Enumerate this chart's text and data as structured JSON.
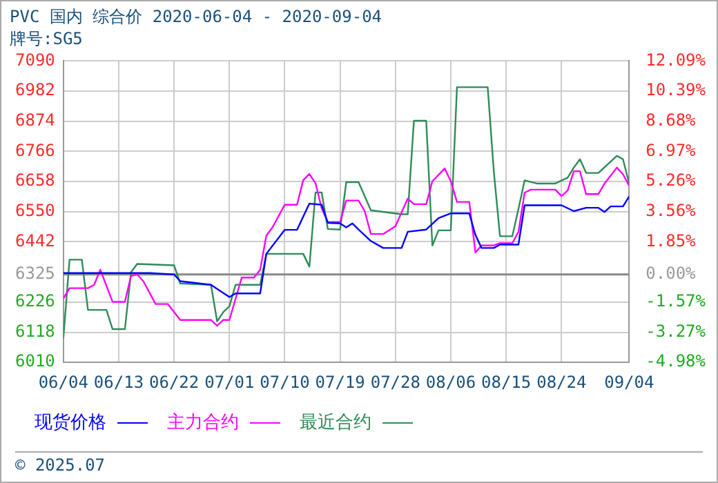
{
  "chart_data": {
    "type": "line",
    "title": "PVC 国内 综合价 2020-06-04 - 2020-09-04",
    "subtitle": "牌号:SG5",
    "annotations": [
      "© 2025.07"
    ],
    "xlim": [
      "2020-06-04",
      "2020-09-04"
    ],
    "xticks": [
      {
        "value": "2020-06-04",
        "label": "06/04"
      },
      {
        "value": "2020-06-13",
        "label": "06/13"
      },
      {
        "value": "2020-06-22",
        "label": "06/22"
      },
      {
        "value": "2020-07-01",
        "label": "07/01"
      },
      {
        "value": "2020-07-10",
        "label": "07/10"
      },
      {
        "value": "2020-07-19",
        "label": "07/19"
      },
      {
        "value": "2020-07-28",
        "label": "07/28"
      },
      {
        "value": "2020-08-06",
        "label": "08/06"
      },
      {
        "value": "2020-08-15",
        "label": "08/15"
      },
      {
        "value": "2020-08-24",
        "label": "08/24"
      },
      {
        "value": "2020-09-04",
        "label": "09/04"
      }
    ],
    "ylim": [
      6010,
      7090
    ],
    "yticks": [
      6010,
      6118,
      6226,
      6325,
      6442,
      6550,
      6658,
      6766,
      6874,
      6982,
      7090
    ],
    "y2lim": [
      -4.98,
      12.09
    ],
    "y2ticks": [
      {
        "value": -4.98,
        "label": "-4.98%"
      },
      {
        "value": -3.27,
        "label": "-3.27%"
      },
      {
        "value": -1.57,
        "label": "-1.57%"
      },
      {
        "value": 0,
        "label": "0.00%"
      },
      {
        "value": 1.85,
        "label": "1.85%"
      },
      {
        "value": 3.56,
        "label": "3.56%"
      },
      {
        "value": 5.26,
        "label": "5.26%"
      },
      {
        "value": 6.97,
        "label": "6.97%"
      },
      {
        "value": 8.68,
        "label": "8.68%"
      },
      {
        "value": 10.39,
        "label": "10.39%"
      },
      {
        "value": 12.09,
        "label": "12.09%"
      }
    ],
    "ref_lines": [
      {
        "axis": "y",
        "value": 6325,
        "color": "#888888"
      }
    ],
    "grid": true,
    "legend": "bottom",
    "marker": "none",
    "line_style": "solid",
    "series": [
      {
        "name": "现货价格",
        "color": "#0000ff",
        "x": [
          "2020-06-04",
          "2020-06-18",
          "2020-06-22",
          "2020-06-23",
          "2020-06-28",
          "2020-07-01",
          "2020-07-02",
          "2020-07-06",
          "2020-07-07",
          "2020-07-10",
          "2020-07-12",
          "2020-07-14",
          "2020-07-16",
          "2020-07-17",
          "2020-07-19",
          "2020-07-20",
          "2020-07-21",
          "2020-07-22",
          "2020-07-24",
          "2020-07-26",
          "2020-07-29",
          "2020-07-30",
          "2020-08-02",
          "2020-08-04",
          "2020-08-06",
          "2020-08-09",
          "2020-08-10",
          "2020-08-11",
          "2020-08-13",
          "2020-08-14",
          "2020-08-17",
          "2020-08-18",
          "2020-08-24",
          "2020-08-26",
          "2020-08-28",
          "2020-08-30",
          "2020-08-31",
          "2020-09-01",
          "2020-09-03",
          "2020-09-04"
        ],
        "values": [
          6330,
          6330,
          6325,
          6301,
          6288,
          6244,
          6257,
          6257,
          6399,
          6485,
          6485,
          6579,
          6575,
          6510,
          6508,
          6494,
          6508,
          6486,
          6445,
          6420,
          6420,
          6478,
          6486,
          6527,
          6544,
          6544,
          6467,
          6420,
          6420,
          6432,
          6432,
          6573,
          6573,
          6552,
          6564,
          6564,
          6549,
          6569,
          6569,
          6605
        ]
      },
      {
        "name": "主力合约",
        "color": "#ff00ff",
        "x": [
          "2020-06-04",
          "2020-06-05",
          "2020-06-08",
          "2020-06-09",
          "2020-06-10",
          "2020-06-12",
          "2020-06-14",
          "2020-06-15",
          "2020-06-16",
          "2020-06-17",
          "2020-06-19",
          "2020-06-21",
          "2020-06-23",
          "2020-06-28",
          "2020-06-29",
          "2020-06-30",
          "2020-07-01",
          "2020-07-03",
          "2020-07-05",
          "2020-07-06",
          "2020-07-07",
          "2020-07-08",
          "2020-07-10",
          "2020-07-12",
          "2020-07-13",
          "2020-07-14",
          "2020-07-15",
          "2020-07-16",
          "2020-07-17",
          "2020-07-19",
          "2020-07-20",
          "2020-07-22",
          "2020-07-23",
          "2020-07-24",
          "2020-07-26",
          "2020-07-28",
          "2020-07-30",
          "2020-07-31",
          "2020-08-02",
          "2020-08-03",
          "2020-08-05",
          "2020-08-06",
          "2020-08-07",
          "2020-08-09",
          "2020-08-10",
          "2020-08-11",
          "2020-08-13",
          "2020-08-14",
          "2020-08-16",
          "2020-08-17",
          "2020-08-18",
          "2020-08-19",
          "2020-08-23",
          "2020-08-24",
          "2020-08-25",
          "2020-08-26",
          "2020-08-27",
          "2020-08-28",
          "2020-08-30",
          "2020-08-31",
          "2020-09-02",
          "2020-09-03",
          "2020-09-04"
        ],
        "values": [
          6239,
          6276,
          6276,
          6288,
          6342,
          6227,
          6227,
          6320,
          6325,
          6301,
          6219,
          6219,
          6162,
          6162,
          6141,
          6162,
          6162,
          6314,
          6314,
          6342,
          6464,
          6494,
          6575,
          6575,
          6663,
          6685,
          6652,
          6562,
          6513,
          6513,
          6590,
          6590,
          6552,
          6470,
          6470,
          6498,
          6597,
          6577,
          6577,
          6659,
          6705,
          6659,
          6585,
          6585,
          6404,
          6429,
          6429,
          6437,
          6437,
          6478,
          6618,
          6629,
          6629,
          6606,
          6626,
          6695,
          6695,
          6613,
          6613,
          6651,
          6708,
          6684,
          6643
        ]
      },
      {
        "name": "最近合约",
        "color": "#2e8b57",
        "x": [
          "2020-06-04",
          "2020-06-05",
          "2020-06-07",
          "2020-06-08",
          "2020-06-11",
          "2020-06-12",
          "2020-06-14",
          "2020-06-15",
          "2020-06-16",
          "2020-06-22",
          "2020-06-23",
          "2020-06-28",
          "2020-06-29",
          "2020-06-30",
          "2020-07-01",
          "2020-07-02",
          "2020-07-06",
          "2020-07-07",
          "2020-07-13",
          "2020-07-14",
          "2020-07-15",
          "2020-07-16",
          "2020-07-17",
          "2020-07-19",
          "2020-07-20",
          "2020-07-22",
          "2020-07-24",
          "2020-07-29",
          "2020-07-30",
          "2020-07-31",
          "2020-08-02",
          "2020-08-03",
          "2020-08-04",
          "2020-08-06",
          "2020-08-07",
          "2020-08-12",
          "2020-08-13",
          "2020-08-14",
          "2020-08-16",
          "2020-08-17",
          "2020-08-18",
          "2020-08-20",
          "2020-08-23",
          "2020-08-25",
          "2020-08-26",
          "2020-08-27",
          "2020-08-28",
          "2020-08-30",
          "2020-09-02",
          "2020-09-03",
          "2020-09-04"
        ],
        "values": [
          6097,
          6378,
          6378,
          6198,
          6198,
          6129,
          6129,
          6333,
          6363,
          6358,
          6293,
          6288,
          6157,
          6190,
          6211,
          6288,
          6288,
          6399,
          6399,
          6353,
          6619,
          6619,
          6488,
          6486,
          6656,
          6656,
          6555,
          6541,
          6541,
          6876,
          6876,
          6429,
          6483,
          6483,
          6996,
          6996,
          6692,
          6462,
          6462,
          6560,
          6662,
          6651,
          6651,
          6672,
          6708,
          6738,
          6689,
          6689,
          6750,
          6738,
          6651
        ]
      }
    ]
  }
}
